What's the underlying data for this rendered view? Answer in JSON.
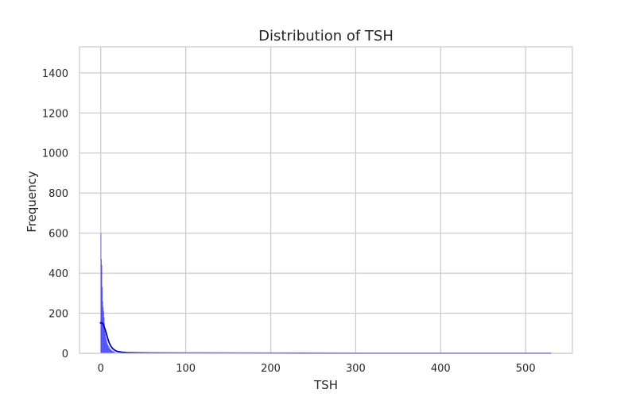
{
  "chart_data": {
    "type": "bar",
    "title": "Distribution of TSH",
    "xlabel": "TSH",
    "ylabel": "Frequency",
    "xlim": [
      -25,
      555
    ],
    "ylim": [
      0,
      1530
    ],
    "xticks": [
      0,
      100,
      200,
      300,
      400,
      500
    ],
    "yticks": [
      0,
      200,
      400,
      600,
      800,
      1000,
      1200,
      1400
    ],
    "grid": true,
    "bar_color": "#0000ff",
    "bar_alpha": 0.5,
    "kde_color": "#0000cc",
    "bin_width": 0.53,
    "histogram": {
      "bin_starts": [
        0.0,
        0.53,
        1.06,
        1.59,
        2.12,
        2.65,
        3.18,
        3.71,
        4.24,
        4.77,
        5.3,
        5.83,
        6.36,
        6.89,
        7.42,
        7.95,
        8.48,
        9.01,
        9.54,
        10.07,
        10.6,
        11.13,
        11.66,
        12.19,
        12.72,
        13.25,
        13.78,
        14.31,
        14.84,
        15.37,
        15.9,
        17.0,
        19.0,
        22.0,
        26.0,
        30.0,
        35.0,
        42.0,
        50.0,
        60.0,
        80.0,
        100.0,
        130.0,
        160.0,
        200.0,
        260.0,
        300.0,
        400.0,
        470.0,
        530.0
      ],
      "counts": [
        600,
        470,
        440,
        330,
        260,
        230,
        210,
        180,
        150,
        120,
        95,
        80,
        70,
        60,
        50,
        45,
        40,
        35,
        30,
        26,
        22,
        20,
        18,
        16,
        14,
        12,
        11,
        10,
        9,
        8,
        7,
        6,
        5,
        4,
        4,
        3,
        3,
        2,
        2,
        2,
        1,
        1,
        1,
        1,
        1,
        1,
        1,
        1,
        1,
        1
      ]
    },
    "kde": {
      "x": [
        -1,
        0,
        1,
        2,
        3,
        4,
        5,
        6,
        7,
        8,
        9,
        10,
        12,
        14,
        16,
        18,
        20,
        25,
        30,
        40,
        60,
        100,
        200,
        300,
        400,
        530
      ],
      "y": [
        150,
        152,
        153,
        150,
        143,
        134,
        122,
        108,
        93,
        78,
        64,
        52,
        35,
        24,
        17,
        12,
        9,
        6,
        4,
        3,
        2,
        1.5,
        1,
        0.5,
        0.5,
        0.5
      ]
    }
  }
}
